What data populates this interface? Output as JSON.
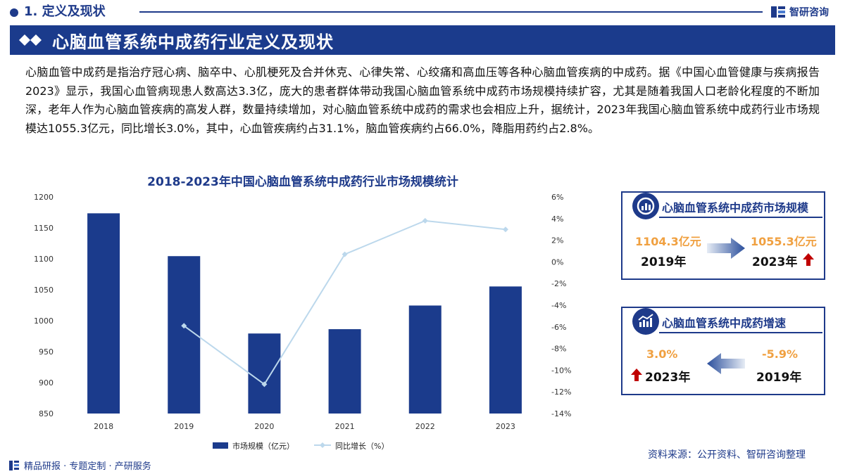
{
  "header": {
    "section_label": "1. 定义及现状",
    "brand": "智研咨询",
    "title": "心脑血管系统中成药行业定义及现状"
  },
  "intro": "心脑血管中成药是指治疗冠心病、脑卒中、心肌梗死及合并休克、心律失常、心绞痛和高血压等各种心脑血管疾病的中成药。据《中国心血管健康与疾病报告2023》显示，我国心血管病现患人数高达3.3亿，庞大的患者群体带动我国心脑血管系统中成药市场规模持续扩容，尤其是随着我国人口老龄化程度的不断加深，老年人作为心脑血管疾病的高发人群，数量持续增加，对心脑血管系统中成药的需求也会相应上升，据统计，2023年我国心脑血管系统中成药行业市场规模达1055.3亿元，同比增长3.0%，其中，心血管疾病约占31.1%，脑血管疾病约占66.0%，降脂用药约占2.8%。",
  "chart_data": {
    "type": "bar",
    "title": "2018-2023年中国心脑血管系统中成药行业市场规模统计",
    "categories": [
      "2018",
      "2019",
      "2020",
      "2021",
      "2022",
      "2023"
    ],
    "series": [
      {
        "name": "市场规模（亿元）",
        "type": "bar",
        "axis": "left",
        "color": "#1b3b8c",
        "values": [
          1173.5,
          1104.3,
          979.3,
          986.3,
          1024.5,
          1055.3
        ]
      },
      {
        "name": "同比增长（%）",
        "type": "line",
        "axis": "right",
        "color": "#bcd8ec",
        "values": [
          null,
          -5.9,
          -11.3,
          0.7,
          3.8,
          3.0
        ]
      }
    ],
    "y_left": {
      "min": 850,
      "max": 1200,
      "ticks": [
        "850",
        "900",
        "950",
        "1000",
        "1050",
        "1100",
        "1150",
        "1200"
      ]
    },
    "y_right": {
      "min": -14,
      "max": 6,
      "ticks": [
        "-14%",
        "-12%",
        "-10%",
        "-8%",
        "-6%",
        "-4%",
        "-2%",
        "0%",
        "2%",
        "4%",
        "6%"
      ]
    },
    "grid": false,
    "legend": "bottom"
  },
  "card1": {
    "title": "心脑血管系统中成药市场规模",
    "left_value": "1104.3亿元",
    "left_year": "2019年",
    "right_value": "1055.3亿元",
    "right_year": "2023年"
  },
  "card2": {
    "title": "心脑血管系统中成药增速",
    "left_value": "3.0%",
    "left_year": "2023年",
    "right_value": "-5.9%",
    "right_year": "2019年"
  },
  "source": "资料来源：公开资料、智研咨询整理",
  "footer": "精品研报 · 专题定制 · 产研服务",
  "colors": {
    "primary": "#1b3b8c",
    "accent": "#f0a040",
    "arrow_up": "#c00000",
    "line": "#bcd8ec"
  },
  "icons": {
    "brand": "zhiyan-logo-icon",
    "banner": "double-diamond-icon",
    "card1": "chart-badge-icon",
    "card2": "growth-badge-icon",
    "up": "red-up-arrow-icon"
  }
}
